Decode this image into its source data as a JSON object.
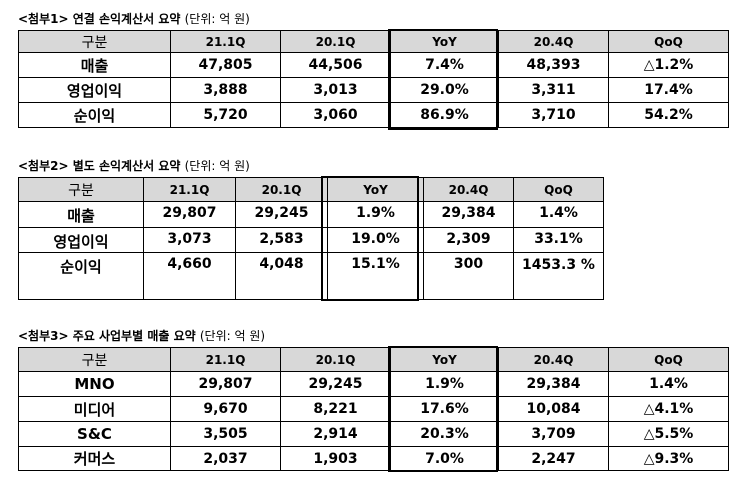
{
  "tables": [
    {
      "caption": "<첨부1> 연결 손익계산서 요약",
      "unit": "(단위: 억 원)",
      "headers": [
        "구분",
        "21.1Q",
        "20.1Q",
        "YoY",
        "20.4Q",
        "QoQ"
      ],
      "rows": [
        [
          "매출",
          "47,805",
          "44,506",
          "7.4%",
          "48,393",
          "△1.2%"
        ],
        [
          "영업이익",
          "3,888",
          "3,013",
          "29.0%",
          "3,311",
          "17.4%"
        ],
        [
          "순이익",
          "5,720",
          "3,060",
          "86.9%",
          "3,710",
          "54.2%"
        ]
      ]
    },
    {
      "caption": "<첨부2> 별도 손익계산서 요약",
      "unit": "(단위: 억 원)",
      "headers": [
        "구분",
        "21.1Q",
        "20.1Q",
        "YoY",
        "20.4Q",
        "QoQ"
      ],
      "rows": [
        [
          "매출",
          "29,807",
          "29,245",
          "1.9%",
          "29,384",
          "1.4%"
        ],
        [
          "영업이익",
          "3,073",
          "2,583",
          "19.0%",
          "2,309",
          "33.1%"
        ],
        [
          "순이익",
          "4,660",
          "4,048",
          "15.1%",
          "300",
          "1453.3 %"
        ]
      ]
    },
    {
      "caption": "<첨부3> 주요 사업부별 매출 요약",
      "unit": "(단위: 억 원)",
      "headers": [
        "구분",
        "21.1Q",
        "20.1Q",
        "YoY",
        "20.4Q",
        "QoQ"
      ],
      "rows": [
        [
          "MNO",
          "29,807",
          "29,245",
          "1.9%",
          "29,384",
          "1.4%"
        ],
        [
          "미디어",
          "9,670",
          "8,221",
          "17.6%",
          "10,084",
          "△4.1%"
        ],
        [
          "S&C",
          "3,505",
          "2,914",
          "20.3%",
          "3,709",
          "△5.5%"
        ],
        [
          "커머스",
          "2,037",
          "1,903",
          "7.0%",
          "2,247",
          "△9.3%"
        ]
      ]
    }
  ]
}
